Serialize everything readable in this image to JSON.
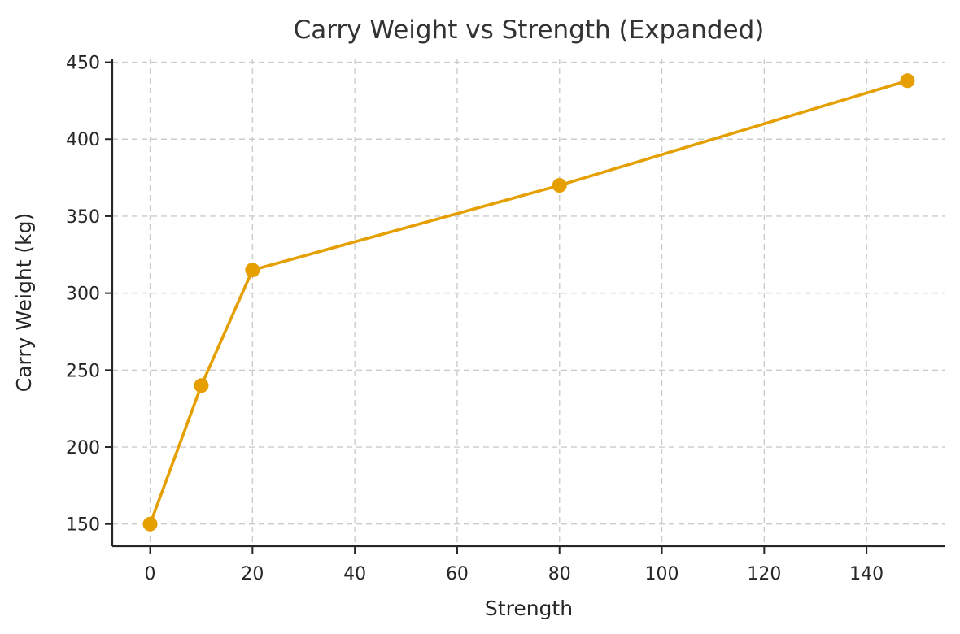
{
  "chart_data": {
    "type": "line",
    "title": "Carry Weight vs Strength (Expanded)",
    "xlabel": "Strength",
    "ylabel": "Carry Weight (kg)",
    "series": [
      {
        "name": "Carry Weight",
        "x": [
          0,
          10,
          20,
          80,
          148
        ],
        "y": [
          150,
          240,
          315,
          370,
          438
        ]
      }
    ],
    "xticks": [
      0,
      20,
      40,
      60,
      80,
      100,
      120,
      140
    ],
    "yticks": [
      150,
      200,
      250,
      300,
      350,
      400,
      450
    ],
    "xlim": [
      -7.4,
      155.4
    ],
    "ylim": [
      135.6,
      452.4
    ],
    "grid": "on",
    "grid_style": "dashed",
    "legend": "none",
    "marker": "circle",
    "colors": {
      "line": "#E69F00",
      "grid": "#CCCCCC",
      "axis": "#262626",
      "text": "#262626",
      "title": "#333333",
      "background": "#FFFFFF"
    }
  }
}
